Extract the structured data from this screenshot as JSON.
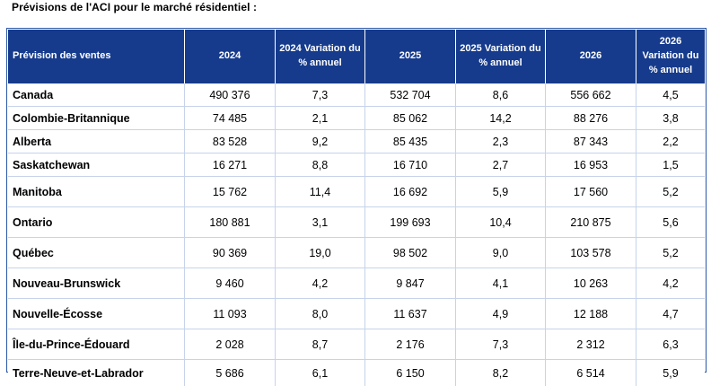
{
  "title": "Prévisions de l'ACI pour le marché résidentiel :",
  "table": {
    "headers": [
      "Prévision des ventes",
      "2024",
      "2024 Variation du % annuel",
      "2025",
      "2025 Variation du % annuel",
      "2026",
      "2026 Variation du % annuel"
    ],
    "rows": [
      [
        "Canada",
        "490 376",
        "7,3",
        "532 704",
        "8,6",
        "556 662",
        "4,5"
      ],
      [
        "Colombie-Britannique",
        "74 485",
        "2,1",
        "85 062",
        "14,2",
        "88 276",
        "3,8"
      ],
      [
        "Alberta",
        "83 528",
        "9,2",
        "85 435",
        "2,3",
        "87 343",
        "2,2"
      ],
      [
        "Saskatchewan",
        "16 271",
        "8,8",
        "16 710",
        "2,7",
        "16 953",
        "1,5"
      ],
      [
        "Manitoba",
        "15 762",
        "11,4",
        "16 692",
        "5,9",
        "17 560",
        "5,2"
      ],
      [
        "Ontario",
        "180 881",
        "3,1",
        "199 693",
        "10,4",
        "210 875",
        "5,6"
      ],
      [
        "Québec",
        "90 369",
        "19,0",
        "98 502",
        "9,0",
        "103 578",
        "5,2"
      ],
      [
        "Nouveau-Brunswick",
        "9 460",
        "4,2",
        "9 847",
        "4,1",
        "10 263",
        "4,2"
      ],
      [
        "Nouvelle-Écosse",
        "11 093",
        "8,0",
        "11 637",
        "4,9",
        "12 188",
        "4,7"
      ],
      [
        "Île-du-Prince-Édouard",
        "2 028",
        "8,7",
        "2 176",
        "7,3",
        "2 312",
        "6,3"
      ],
      [
        "Terre-Neuve-et-Labrador",
        "5 686",
        "6,1",
        "6 150",
        "8,2",
        "6 514",
        "5,9"
      ]
    ]
  }
}
